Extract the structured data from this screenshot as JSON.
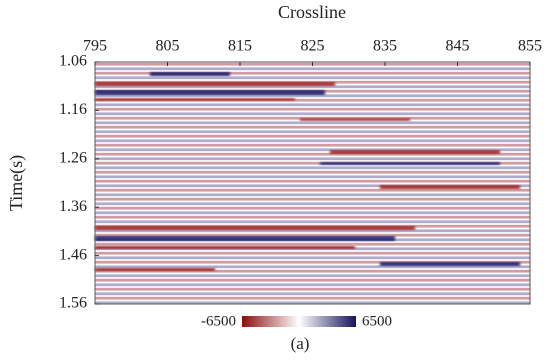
{
  "chart_data": {
    "type": "seismic",
    "xlabel": "Crossline",
    "ylabel": "Time(s)",
    "xlim": [
      795,
      855
    ],
    "xticks": [
      795,
      805,
      815,
      825,
      835,
      845,
      855
    ],
    "ylim": [
      1.06,
      1.56
    ],
    "yticks": [
      1.06,
      1.16,
      1.26,
      1.36,
      1.46,
      1.56
    ],
    "y_inverted": true,
    "x_axis_top": true,
    "clim": [
      -6500,
      6500
    ],
    "colormap": [
      "#8b0c0c",
      "#ffffff",
      "#14145a"
    ],
    "caption": "(a)"
  }
}
